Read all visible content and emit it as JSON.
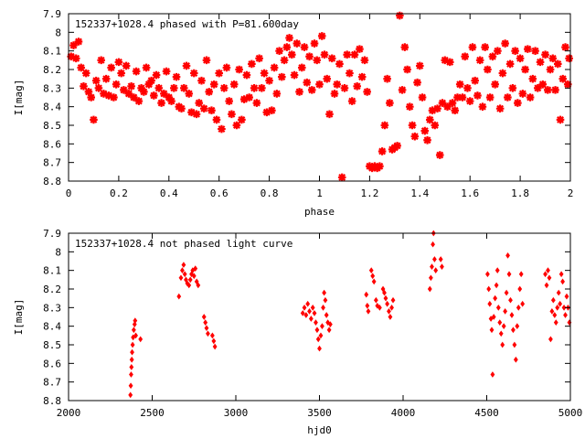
{
  "chart_data": [
    {
      "type": "scatter",
      "title": "152337+1028.4 phased with P=81.600day",
      "xlabel": "phase",
      "ylabel": "I[mag]",
      "xlim": [
        0,
        2
      ],
      "ylim": [
        8.8,
        7.9
      ],
      "y_inverted": true,
      "grid": false,
      "legend": "none",
      "marker": "star",
      "color": "#ff0000",
      "x_ticks": [
        0,
        0.2,
        0.4,
        0.6,
        0.8,
        1,
        1.2,
        1.4,
        1.6,
        1.8,
        2
      ],
      "x_tick_labels": [
        "0",
        "0.2",
        "0.4",
        "0.6",
        "0.8",
        "1",
        "1.2",
        "1.4",
        "1.6",
        "1.8",
        "2"
      ],
      "y_ticks": [
        7.9,
        8,
        8.1,
        8.2,
        8.3,
        8.4,
        8.5,
        8.6,
        8.7,
        8.8
      ],
      "y_tick_labels": [
        "7.9",
        "8",
        "8.1",
        "8.2",
        "8.3",
        "8.4",
        "8.5",
        "8.6",
        "8.7",
        "8.8"
      ],
      "points": [
        [
          0.01,
          8.13
        ],
        [
          0.02,
          8.07
        ],
        [
          0.03,
          8.14
        ],
        [
          0.04,
          8.05
        ],
        [
          0.05,
          8.19
        ],
        [
          0.06,
          8.29
        ],
        [
          0.07,
          8.22
        ],
        [
          0.08,
          8.32
        ],
        [
          0.09,
          8.35
        ],
        [
          0.1,
          8.47
        ],
        [
          0.11,
          8.26
        ],
        [
          0.12,
          8.3
        ],
        [
          0.13,
          8.15
        ],
        [
          0.14,
          8.33
        ],
        [
          0.15,
          8.25
        ],
        [
          0.16,
          8.34
        ],
        [
          0.17,
          8.19
        ],
        [
          0.18,
          8.35
        ],
        [
          0.19,
          8.28
        ],
        [
          0.2,
          8.16
        ],
        [
          0.21,
          8.22
        ],
        [
          0.22,
          8.31
        ],
        [
          0.23,
          8.18
        ],
        [
          0.24,
          8.33
        ],
        [
          0.25,
          8.29
        ],
        [
          0.26,
          8.35
        ],
        [
          0.27,
          8.21
        ],
        [
          0.28,
          8.37
        ],
        [
          0.29,
          8.3
        ],
        [
          0.3,
          8.32
        ],
        [
          0.31,
          8.19
        ],
        [
          0.32,
          8.28
        ],
        [
          0.33,
          8.26
        ],
        [
          0.34,
          8.34
        ],
        [
          0.35,
          8.23
        ],
        [
          0.36,
          8.3
        ],
        [
          0.37,
          8.38
        ],
        [
          0.38,
          8.33
        ],
        [
          0.39,
          8.21
        ],
        [
          0.4,
          8.35
        ],
        [
          0.41,
          8.37
        ],
        [
          0.42,
          8.3
        ],
        [
          0.43,
          8.24
        ],
        [
          0.44,
          8.4
        ],
        [
          0.45,
          8.41
        ],
        [
          0.46,
          8.3
        ],
        [
          0.47,
          8.18
        ],
        [
          0.48,
          8.33
        ],
        [
          0.49,
          8.43
        ],
        [
          0.5,
          8.22
        ],
        [
          0.51,
          8.44
        ],
        [
          0.52,
          8.38
        ],
        [
          0.53,
          8.26
        ],
        [
          0.54,
          8.41
        ],
        [
          0.55,
          8.15
        ],
        [
          0.56,
          8.32
        ],
        [
          0.57,
          8.42
        ],
        [
          0.58,
          8.28
        ],
        [
          0.59,
          8.47
        ],
        [
          0.6,
          8.22
        ],
        [
          0.61,
          8.52
        ],
        [
          0.62,
          8.3
        ],
        [
          0.63,
          8.19
        ],
        [
          0.64,
          8.37
        ],
        [
          0.65,
          8.44
        ],
        [
          0.66,
          8.28
        ],
        [
          0.67,
          8.5
        ],
        [
          0.68,
          8.2
        ],
        [
          0.69,
          8.47
        ],
        [
          0.7,
          8.36
        ],
        [
          0.71,
          8.23
        ],
        [
          0.72,
          8.35
        ],
        [
          0.73,
          8.17
        ],
        [
          0.74,
          8.3
        ],
        [
          0.75,
          8.38
        ],
        [
          0.76,
          8.14
        ],
        [
          0.77,
          8.3
        ],
        [
          0.78,
          8.22
        ],
        [
          0.79,
          8.43
        ],
        [
          0.8,
          8.26
        ],
        [
          0.81,
          8.42
        ],
        [
          0.82,
          8.19
        ],
        [
          0.83,
          8.33
        ],
        [
          0.84,
          8.1
        ],
        [
          0.85,
          8.24
        ],
        [
          0.86,
          8.15
        ],
        [
          0.87,
          8.08
        ],
        [
          0.88,
          8.03
        ],
        [
          0.89,
          8.12
        ],
        [
          0.9,
          8.23
        ],
        [
          0.91,
          8.06
        ],
        [
          0.92,
          8.32
        ],
        [
          0.93,
          8.19
        ],
        [
          0.94,
          8.08
        ],
        [
          0.95,
          8.27
        ],
        [
          0.96,
          8.13
        ],
        [
          0.97,
          8.31
        ],
        [
          0.98,
          8.06
        ],
        [
          0.99,
          8.15
        ],
        [
          1.0,
          8.28
        ],
        [
          1.01,
          8.02
        ],
        [
          1.02,
          8.12
        ],
        [
          1.03,
          8.25
        ],
        [
          1.04,
          8.44
        ],
        [
          1.05,
          8.14
        ],
        [
          1.06,
          8.33
        ],
        [
          1.07,
          8.28
        ],
        [
          1.08,
          8.17
        ],
        [
          1.09,
          8.78
        ],
        [
          1.1,
          8.3
        ],
        [
          1.11,
          8.12
        ],
        [
          1.12,
          8.22
        ],
        [
          1.13,
          8.37
        ],
        [
          1.14,
          8.12
        ],
        [
          1.15,
          8.29
        ],
        [
          1.16,
          8.09
        ],
        [
          1.17,
          8.24
        ],
        [
          1.18,
          8.15
        ],
        [
          1.19,
          8.32
        ],
        [
          1.2,
          8.72
        ],
        [
          1.21,
          8.73
        ],
        [
          1.22,
          8.72
        ],
        [
          1.23,
          8.73
        ],
        [
          1.24,
          8.72
        ],
        [
          1.25,
          8.64
        ],
        [
          1.26,
          8.5
        ],
        [
          1.27,
          8.25
        ],
        [
          1.28,
          8.38
        ],
        [
          1.29,
          8.63
        ],
        [
          1.3,
          8.62
        ],
        [
          1.31,
          8.61
        ],
        [
          1.32,
          7.91
        ],
        [
          1.33,
          8.31
        ],
        [
          1.34,
          8.08
        ],
        [
          1.35,
          8.2
        ],
        [
          1.36,
          8.4
        ],
        [
          1.37,
          8.5
        ],
        [
          1.38,
          8.56
        ],
        [
          1.39,
          8.27
        ],
        [
          1.4,
          8.18
        ],
        [
          1.41,
          8.35
        ],
        [
          1.42,
          8.53
        ],
        [
          1.43,
          8.58
        ],
        [
          1.44,
          8.47
        ],
        [
          1.45,
          8.42
        ],
        [
          1.46,
          8.5
        ],
        [
          1.47,
          8.41
        ],
        [
          1.48,
          8.66
        ],
        [
          1.49,
          8.38
        ],
        [
          1.5,
          8.15
        ],
        [
          1.51,
          8.4
        ],
        [
          1.52,
          8.16
        ],
        [
          1.53,
          8.38
        ],
        [
          1.54,
          8.42
        ],
        [
          1.55,
          8.35
        ],
        [
          1.56,
          8.28
        ],
        [
          1.57,
          8.35
        ],
        [
          1.58,
          8.13
        ],
        [
          1.59,
          8.3
        ],
        [
          1.6,
          8.37
        ],
        [
          1.61,
          8.08
        ],
        [
          1.62,
          8.26
        ],
        [
          1.63,
          8.34
        ],
        [
          1.64,
          8.15
        ],
        [
          1.65,
          8.4
        ],
        [
          1.66,
          8.08
        ],
        [
          1.67,
          8.2
        ],
        [
          1.68,
          8.35
        ],
        [
          1.69,
          8.13
        ],
        [
          1.7,
          8.28
        ],
        [
          1.71,
          8.1
        ],
        [
          1.72,
          8.41
        ],
        [
          1.73,
          8.22
        ],
        [
          1.74,
          8.06
        ],
        [
          1.75,
          8.35
        ],
        [
          1.76,
          8.17
        ],
        [
          1.77,
          8.3
        ],
        [
          1.78,
          8.1
        ],
        [
          1.79,
          8.38
        ],
        [
          1.8,
          8.14
        ],
        [
          1.81,
          8.33
        ],
        [
          1.82,
          8.2
        ],
        [
          1.83,
          8.09
        ],
        [
          1.84,
          8.35
        ],
        [
          1.85,
          8.25
        ],
        [
          1.86,
          8.1
        ],
        [
          1.87,
          8.3
        ],
        [
          1.88,
          8.16
        ],
        [
          1.89,
          8.28
        ],
        [
          1.9,
          8.12
        ],
        [
          1.91,
          8.31
        ],
        [
          1.92,
          8.2
        ],
        [
          1.93,
          8.14
        ],
        [
          1.94,
          8.31
        ],
        [
          1.95,
          8.17
        ],
        [
          1.96,
          8.47
        ],
        [
          1.97,
          8.25
        ],
        [
          1.98,
          8.08
        ],
        [
          1.99,
          8.28
        ],
        [
          1.995,
          8.14
        ]
      ]
    },
    {
      "type": "scatter",
      "title": "152337+1028.4 not phased light curve",
      "xlabel": "hjd0",
      "ylabel": "I[mag]",
      "xlim": [
        2000,
        5000
      ],
      "ylim": [
        8.8,
        7.9
      ],
      "y_inverted": true,
      "grid": false,
      "legend": "none",
      "marker": "diamond",
      "color": "#ff0000",
      "x_ticks": [
        2000,
        2500,
        3000,
        3500,
        4000,
        4500,
        5000
      ],
      "x_tick_labels": [
        "2000",
        "2500",
        "3000",
        "3500",
        "4000",
        "4500",
        "5000"
      ],
      "y_ticks": [
        7.9,
        8,
        8.1,
        8.2,
        8.3,
        8.4,
        8.5,
        8.6,
        8.7,
        8.8
      ],
      "y_tick_labels": [
        "7.9",
        "8",
        "8.1",
        "8.2",
        "8.3",
        "8.4",
        "8.5",
        "8.6",
        "8.7",
        "8.8"
      ],
      "points": [
        [
          2370,
          8.77
        ],
        [
          2372,
          8.72
        ],
        [
          2374,
          8.66
        ],
        [
          2376,
          8.62
        ],
        [
          2378,
          8.58
        ],
        [
          2380,
          8.54
        ],
        [
          2383,
          8.5
        ],
        [
          2386,
          8.46
        ],
        [
          2390,
          8.42
        ],
        [
          2395,
          8.39
        ],
        [
          2398,
          8.37
        ],
        [
          2402,
          8.45
        ],
        [
          2430,
          8.47
        ],
        [
          2660,
          8.24
        ],
        [
          2672,
          8.14
        ],
        [
          2680,
          8.1
        ],
        [
          2688,
          8.07
        ],
        [
          2695,
          8.12
        ],
        [
          2702,
          8.15
        ],
        [
          2710,
          8.17
        ],
        [
          2720,
          8.18
        ],
        [
          2728,
          8.15
        ],
        [
          2735,
          8.12
        ],
        [
          2742,
          8.1
        ],
        [
          2750,
          8.13
        ],
        [
          2758,
          8.09
        ],
        [
          2766,
          8.16
        ],
        [
          2775,
          8.18
        ],
        [
          2810,
          8.35
        ],
        [
          2818,
          8.38
        ],
        [
          2825,
          8.41
        ],
        [
          2833,
          8.44
        ],
        [
          2860,
          8.45
        ],
        [
          2868,
          8.48
        ],
        [
          2875,
          8.51
        ],
        [
          3400,
          8.33
        ],
        [
          3410,
          8.3
        ],
        [
          3420,
          8.34
        ],
        [
          3430,
          8.28
        ],
        [
          3440,
          8.32
        ],
        [
          3450,
          8.36
        ],
        [
          3460,
          8.3
        ],
        [
          3470,
          8.33
        ],
        [
          3478,
          8.38
        ],
        [
          3486,
          8.42
        ],
        [
          3493,
          8.47
        ],
        [
          3500,
          8.52
        ],
        [
          3508,
          8.45
        ],
        [
          3516,
          8.4
        ],
        [
          3522,
          8.3
        ],
        [
          3528,
          8.22
        ],
        [
          3535,
          8.26
        ],
        [
          3542,
          8.34
        ],
        [
          3550,
          8.38
        ],
        [
          3558,
          8.42
        ],
        [
          3565,
          8.39
        ],
        [
          3780,
          8.23
        ],
        [
          3786,
          8.29
        ],
        [
          3792,
          8.32
        ],
        [
          3810,
          8.1
        ],
        [
          3818,
          8.13
        ],
        [
          3826,
          8.16
        ],
        [
          3838,
          8.26
        ],
        [
          3846,
          8.29
        ],
        [
          3860,
          8.3
        ],
        [
          3880,
          8.2
        ],
        [
          3888,
          8.22
        ],
        [
          3896,
          8.25
        ],
        [
          3905,
          8.28
        ],
        [
          3915,
          8.32
        ],
        [
          3923,
          8.35
        ],
        [
          3932,
          8.3
        ],
        [
          3940,
          8.26
        ],
        [
          4160,
          8.2
        ],
        [
          4166,
          8.14
        ],
        [
          4172,
          8.08
        ],
        [
          4178,
          7.96
        ],
        [
          4182,
          7.9
        ],
        [
          4188,
          8.04
        ],
        [
          4195,
          8.1
        ],
        [
          4225,
          8.04
        ],
        [
          4232,
          8.08
        ],
        [
          4505,
          8.12
        ],
        [
          4512,
          8.2
        ],
        [
          4518,
          8.28
        ],
        [
          4525,
          8.36
        ],
        [
          4530,
          8.42
        ],
        [
          4535,
          8.66
        ],
        [
          4542,
          8.35
        ],
        [
          4550,
          8.25
        ],
        [
          4558,
          8.18
        ],
        [
          4564,
          8.1
        ],
        [
          4570,
          8.3
        ],
        [
          4578,
          8.38
        ],
        [
          4586,
          8.44
        ],
        [
          4594,
          8.5
        ],
        [
          4602,
          8.4
        ],
        [
          4610,
          8.32
        ],
        [
          4618,
          8.22
        ],
        [
          4626,
          8.02
        ],
        [
          4634,
          8.12
        ],
        [
          4642,
          8.26
        ],
        [
          4650,
          8.34
        ],
        [
          4658,
          8.42
        ],
        [
          4666,
          8.5
        ],
        [
          4674,
          8.58
        ],
        [
          4682,
          8.4
        ],
        [
          4690,
          8.3
        ],
        [
          4698,
          8.2
        ],
        [
          4706,
          8.12
        ],
        [
          4714,
          8.28
        ],
        [
          4850,
          8.12
        ],
        [
          4858,
          8.18
        ],
        [
          4866,
          8.1
        ],
        [
          4874,
          8.14
        ],
        [
          4882,
          8.47
        ],
        [
          4890,
          8.32
        ],
        [
          4898,
          8.26
        ],
        [
          4906,
          8.34
        ],
        [
          4914,
          8.38
        ],
        [
          4922,
          8.3
        ],
        [
          4930,
          8.22
        ],
        [
          4938,
          8.28
        ],
        [
          4946,
          8.12
        ],
        [
          4954,
          8.16
        ],
        [
          4962,
          8.3
        ],
        [
          4970,
          8.34
        ],
        [
          4978,
          8.24
        ],
        [
          4986,
          8.3
        ],
        [
          4994,
          8.38
        ]
      ]
    }
  ]
}
